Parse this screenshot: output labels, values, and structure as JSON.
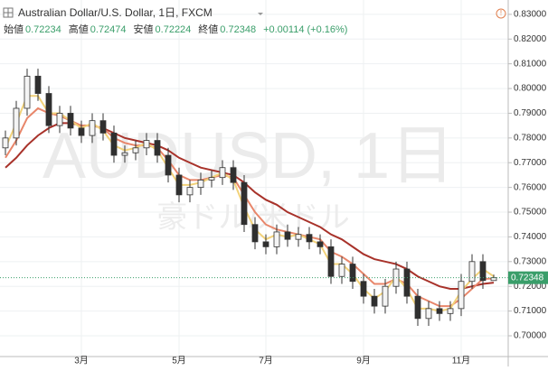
{
  "chart_data": {
    "type": "candlestick",
    "title": "Australian Dollar/U.S. Dollar, 1日, FXCM",
    "watermark": "AUDUSD, 1日",
    "watermark_sub": "豪ドル/米ドル",
    "ohlc_legend": [
      {
        "label": "始値",
        "value": 0.72234
      },
      {
        "label": "高値",
        "value": 0.72474
      },
      {
        "label": "安値",
        "value": 0.72224
      },
      {
        "label": "終値",
        "value": 0.72348
      }
    ],
    "change": "+0.00114 (+0.16%)",
    "last_price": 0.72348,
    "categories": [
      null,
      null,
      null,
      null,
      null,
      null,
      null,
      "3月",
      null,
      null,
      null,
      null,
      null,
      null,
      null,
      null,
      "5月",
      null,
      null,
      null,
      null,
      null,
      null,
      null,
      "7月",
      null,
      null,
      null,
      null,
      null,
      null,
      null,
      null,
      "9月",
      null,
      null,
      null,
      null,
      null,
      null,
      null,
      null,
      "11月",
      null,
      null,
      null
    ],
    "open": [
      0.776,
      0.78,
      0.792,
      0.805,
      0.798,
      0.785,
      0.79,
      0.784,
      0.781,
      0.787,
      0.782,
      0.773,
      0.774,
      0.776,
      0.779,
      0.773,
      0.765,
      0.757,
      0.76,
      0.763,
      0.764,
      0.768,
      0.762,
      0.745,
      0.738,
      0.736,
      0.742,
      0.739,
      0.741,
      0.738,
      0.736,
      0.724,
      0.729,
      0.722,
      0.716,
      0.712,
      0.72,
      0.727,
      0.716,
      0.707,
      0.711,
      0.709,
      0.711,
      0.722,
      0.73,
      0.72234
    ],
    "high": [
      0.783,
      0.795,
      0.808,
      0.808,
      0.801,
      0.793,
      0.793,
      0.787,
      0.79,
      0.79,
      0.785,
      0.777,
      0.779,
      0.782,
      0.782,
      0.776,
      0.768,
      0.763,
      0.766,
      0.767,
      0.771,
      0.771,
      0.765,
      0.748,
      0.741,
      0.745,
      0.745,
      0.744,
      0.744,
      0.741,
      0.739,
      0.732,
      0.732,
      0.725,
      0.719,
      0.723,
      0.73,
      0.73,
      0.719,
      0.714,
      0.714,
      0.714,
      0.725,
      0.733,
      0.733,
      0.72474
    ],
    "low": [
      0.773,
      0.777,
      0.789,
      0.795,
      0.782,
      0.782,
      0.781,
      0.778,
      0.778,
      0.779,
      0.77,
      0.77,
      0.771,
      0.773,
      0.77,
      0.762,
      0.754,
      0.754,
      0.757,
      0.76,
      0.761,
      0.759,
      0.742,
      0.735,
      0.733,
      0.733,
      0.736,
      0.736,
      0.735,
      0.733,
      0.721,
      0.721,
      0.719,
      0.713,
      0.709,
      0.709,
      0.717,
      0.713,
      0.704,
      0.704,
      0.706,
      0.706,
      0.708,
      0.719,
      0.719,
      0.72224
    ],
    "close": [
      0.78,
      0.792,
      0.805,
      0.798,
      0.785,
      0.79,
      0.784,
      0.781,
      0.787,
      0.782,
      0.773,
      0.774,
      0.776,
      0.779,
      0.773,
      0.765,
      0.757,
      0.76,
      0.763,
      0.764,
      0.768,
      0.762,
      0.745,
      0.738,
      0.736,
      0.742,
      0.739,
      0.741,
      0.738,
      0.736,
      0.724,
      0.729,
      0.722,
      0.716,
      0.712,
      0.72,
      0.727,
      0.716,
      0.707,
      0.711,
      0.709,
      0.711,
      0.722,
      0.73,
      0.72234,
      0.72348
    ],
    "up_color": "#f4f4f4",
    "down_color": "#2f2f2f",
    "wick_color": "#333333",
    "series": [
      {
        "color": "#a8322a",
        "values": [
          0.768,
          0.772,
          0.777,
          0.781,
          0.784,
          0.786,
          0.786,
          0.785,
          0.785,
          0.784,
          0.782,
          0.78,
          0.779,
          0.778,
          0.777,
          0.775,
          0.772,
          0.77,
          0.768,
          0.767,
          0.766,
          0.765,
          0.762,
          0.758,
          0.755,
          0.753,
          0.75,
          0.748,
          0.746,
          0.744,
          0.741,
          0.739,
          0.736,
          0.733,
          0.731,
          0.73,
          0.729,
          0.727,
          0.724,
          0.722,
          0.72,
          0.719,
          0.719,
          0.72,
          0.721,
          0.7215
        ]
      },
      {
        "color": "#e8866a",
        "values": [
          0.772,
          0.779,
          0.788,
          0.792,
          0.79,
          0.789,
          0.787,
          0.785,
          0.785,
          0.784,
          0.78,
          0.778,
          0.777,
          0.777,
          0.776,
          0.771,
          0.765,
          0.763,
          0.763,
          0.764,
          0.765,
          0.764,
          0.757,
          0.75,
          0.745,
          0.743,
          0.742,
          0.741,
          0.74,
          0.739,
          0.734,
          0.732,
          0.729,
          0.725,
          0.721,
          0.721,
          0.723,
          0.721,
          0.716,
          0.714,
          0.712,
          0.712,
          0.715,
          0.719,
          0.723,
          0.7232
        ]
      },
      {
        "color": "#f2d27a",
        "values": [
          0.776,
          0.786,
          0.797,
          0.797,
          0.79,
          0.79,
          0.787,
          0.784,
          0.786,
          0.783,
          0.777,
          0.775,
          0.776,
          0.778,
          0.775,
          0.768,
          0.761,
          0.761,
          0.762,
          0.764,
          0.766,
          0.763,
          0.752,
          0.743,
          0.739,
          0.741,
          0.74,
          0.741,
          0.739,
          0.737,
          0.729,
          0.729,
          0.725,
          0.719,
          0.715,
          0.718,
          0.724,
          0.719,
          0.711,
          0.711,
          0.71,
          0.711,
          0.718,
          0.723,
          0.727,
          0.724
        ]
      }
    ],
    "ylim": [
      0.6916,
      0.8358
    ],
    "yticks": [
      {
        "value": 0.7,
        "label": "0.70000"
      },
      {
        "value": 0.71,
        "label": "0.71000"
      },
      {
        "value": 0.72,
        "label": "0.72000"
      },
      {
        "value": 0.73,
        "label": "0.73000"
      },
      {
        "value": 0.74,
        "label": "0.74000"
      },
      {
        "value": 0.75,
        "label": "0.75000"
      },
      {
        "value": 0.76,
        "label": "0.76000"
      },
      {
        "value": 0.77,
        "label": "0.77000"
      },
      {
        "value": 0.78,
        "label": "0.78000"
      },
      {
        "value": 0.79,
        "label": "0.79000"
      },
      {
        "value": 0.8,
        "label": "0.80000"
      },
      {
        "value": 0.81,
        "label": "0.81000"
      },
      {
        "value": 0.82,
        "label": "0.82000"
      },
      {
        "value": 0.83,
        "label": "0.83000"
      }
    ],
    "grid": true
  }
}
